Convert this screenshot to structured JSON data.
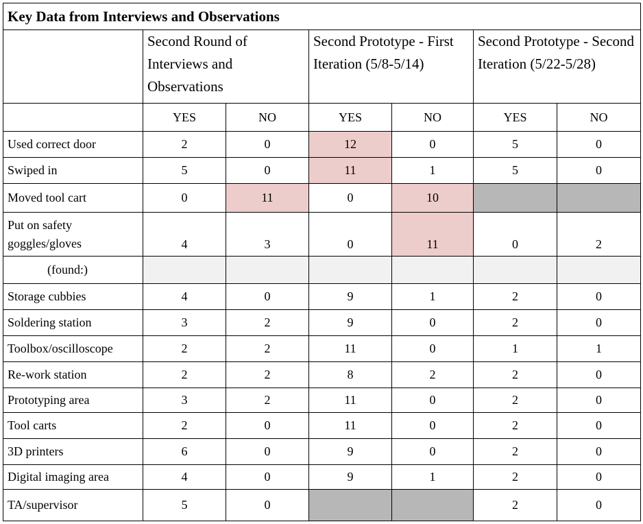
{
  "title": "Key Data from Interviews and Observations",
  "groups": [
    "Second Round of Interviews and Observations",
    "Second Prototype - First Iteration (5/8-5/14)",
    "Second Prototype - Second Iteration (5/22-5/28)"
  ],
  "yes_label": "YES",
  "no_label": "NO",
  "rows": [
    {
      "label": "Used correct door",
      "v": [
        "2",
        "0",
        "12",
        "0",
        "5",
        "0"
      ]
    },
    {
      "label": "Swiped in",
      "v": [
        "5",
        "0",
        "11",
        "1",
        "5",
        "0"
      ]
    },
    {
      "label": "Moved tool cart",
      "v": [
        "0",
        "11",
        "0",
        "10",
        "",
        ""
      ]
    },
    {
      "label": "Put on safety goggles/gloves",
      "label_lines": [
        "Put on safety",
        "goggles/gloves"
      ],
      "v": [
        "4",
        "3",
        "0",
        "11",
        "0",
        "2"
      ]
    },
    {
      "label": "(found:)",
      "v": [
        "",
        "",
        "",
        "",
        "",
        ""
      ]
    },
    {
      "label": "Storage cubbies",
      "v": [
        "4",
        "0",
        "9",
        "1",
        "2",
        "0"
      ]
    },
    {
      "label": "Soldering station",
      "v": [
        "3",
        "2",
        "9",
        "0",
        "2",
        "0"
      ]
    },
    {
      "label": "Toolbox/oscilloscope",
      "v": [
        "2",
        "2",
        "11",
        "0",
        "1",
        "1"
      ]
    },
    {
      "label": "Re-work station",
      "v": [
        "2",
        "2",
        "8",
        "2",
        "2",
        "0"
      ]
    },
    {
      "label": "Prototyping area",
      "v": [
        "3",
        "2",
        "11",
        "0",
        "2",
        "0"
      ]
    },
    {
      "label": "Tool carts",
      "v": [
        "2",
        "0",
        "11",
        "0",
        "2",
        "0"
      ]
    },
    {
      "label": "3D printers",
      "v": [
        "6",
        "0",
        "9",
        "0",
        "2",
        "0"
      ]
    },
    {
      "label": "Digital imaging area",
      "v": [
        "4",
        "0",
        "9",
        "1",
        "2",
        "0"
      ]
    },
    {
      "label": "TA/supervisor",
      "v": [
        "5",
        "0",
        "",
        "",
        "2",
        "0"
      ]
    }
  ],
  "colors": {
    "highlight": "#edcdcb",
    "not_applicable": "#b7b7b7",
    "section_row": "#f1f1f1"
  }
}
